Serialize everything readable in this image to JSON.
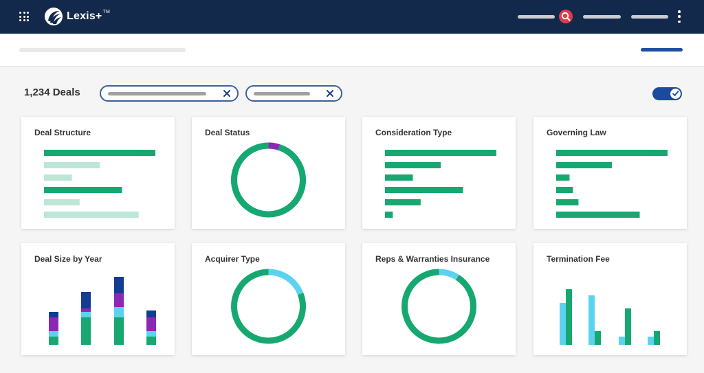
{
  "header": {
    "brand": "Lexis+",
    "brand_mark": "TM",
    "icons": {
      "apps": "apps-grid-icon",
      "logo": "lexis-logo-icon",
      "search": "search-icon",
      "menu": "kebab-menu-icon"
    },
    "colors": {
      "bar": "#13294b",
      "search": "#e03b4a"
    }
  },
  "toolbar": {
    "deal_count": "1,234 Deals",
    "toggle_on": true
  },
  "colors": {
    "green": "#16a870",
    "light_green": "#bde6d5",
    "cyan": "#5bd3f0",
    "purple": "#8a2ab3",
    "navy": "#133d91"
  },
  "cards": [
    {
      "title": "Deal Structure",
      "chart_data": {
        "type": "bar",
        "orientation": "horizontal",
        "values": [
          100,
          50,
          25,
          70,
          32,
          85
        ],
        "colors": [
          "green",
          "light_green",
          "light_green",
          "green",
          "light_green",
          "light_green"
        ]
      }
    },
    {
      "title": "Deal Status",
      "chart_data": {
        "type": "pie",
        "donut": true,
        "values": [
          95,
          5
        ],
        "colors": [
          "green",
          "purple"
        ],
        "remainder_color": "cyan"
      }
    },
    {
      "title": "Consideration Type",
      "chart_data": {
        "type": "bar",
        "orientation": "horizontal",
        "values": [
          100,
          50,
          25,
          70,
          32,
          7
        ],
        "colors": [
          "green",
          "green",
          "green",
          "green",
          "green",
          "green"
        ]
      }
    },
    {
      "title": "Governing Law",
      "chart_data": {
        "type": "bar",
        "orientation": "horizontal",
        "values": [
          100,
          50,
          12,
          15,
          20,
          75
        ],
        "colors": [
          "green",
          "green",
          "green",
          "green",
          "green",
          "green"
        ]
      }
    },
    {
      "title": "Deal Size by Year",
      "chart_data": {
        "type": "bar",
        "stacked": true,
        "series": [
          {
            "color": "green",
            "values": [
              12,
              40,
              40,
              12
            ]
          },
          {
            "color": "cyan",
            "values": [
              8,
              8,
              15,
              8
            ]
          },
          {
            "color": "purple",
            "values": [
              20,
              5,
              20,
              20
            ]
          },
          {
            "color": "navy",
            "values": [
              8,
              24,
              24,
              10
            ]
          }
        ]
      }
    },
    {
      "title": "Acquirer Type",
      "chart_data": {
        "type": "pie",
        "donut": true,
        "values": [
          81,
          19
        ],
        "colors": [
          "green",
          "cyan"
        ]
      }
    },
    {
      "title": "Reps & Warranties Insurance",
      "chart_data": {
        "type": "pie",
        "donut": true,
        "values": [
          91,
          9
        ],
        "colors": [
          "green",
          "cyan"
        ]
      }
    },
    {
      "title": "Termination Fee",
      "chart_data": {
        "type": "bar",
        "grouped": true,
        "series": [
          {
            "color": "cyan",
            "values": [
              61,
              72,
              12,
              12
            ]
          },
          {
            "color": "green",
            "values": [
              81,
              20,
              53,
              20
            ]
          }
        ]
      }
    }
  ]
}
